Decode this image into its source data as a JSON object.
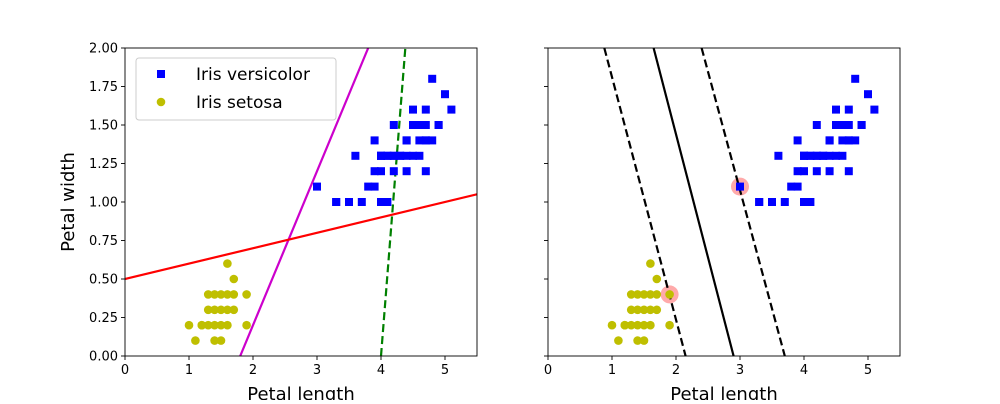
{
  "chart_data": [
    {
      "type": "scatter",
      "xlabel": "Petal length",
      "ylabel": "Petal width",
      "xlim": [
        0,
        5.5
      ],
      "ylim": [
        0,
        2.0
      ],
      "xticks": [
        "0",
        "1",
        "2",
        "3",
        "4",
        "5"
      ],
      "yticks": [
        "0.00",
        "0.25",
        "0.50",
        "0.75",
        "1.00",
        "1.25",
        "1.50",
        "1.75",
        "2.00"
      ],
      "grid": false,
      "legend": {
        "placement": "upper-left",
        "entries": [
          {
            "label": "Iris versicolor",
            "marker": "square",
            "color": "#0000ff"
          },
          {
            "label": "Iris setosa",
            "marker": "circle",
            "color": "#bfbf00"
          }
        ]
      },
      "series": [
        {
          "name": "Iris versicolor",
          "marker": "square",
          "color": "#0000ff",
          "points": [
            [
              4.7,
              1.4
            ],
            [
              4.5,
              1.5
            ],
            [
              4.9,
              1.5
            ],
            [
              4.0,
              1.3
            ],
            [
              4.6,
              1.5
            ],
            [
              4.5,
              1.3
            ],
            [
              4.7,
              1.6
            ],
            [
              3.3,
              1.0
            ],
            [
              4.6,
              1.3
            ],
            [
              3.9,
              1.4
            ],
            [
              3.5,
              1.0
            ],
            [
              4.2,
              1.5
            ],
            [
              4.0,
              1.0
            ],
            [
              4.7,
              1.4
            ],
            [
              3.6,
              1.3
            ],
            [
              4.4,
              1.4
            ],
            [
              4.5,
              1.5
            ],
            [
              4.1,
              1.0
            ],
            [
              4.5,
              1.5
            ],
            [
              3.9,
              1.1
            ],
            [
              4.8,
              1.8
            ],
            [
              4.0,
              1.3
            ],
            [
              4.9,
              1.5
            ],
            [
              4.7,
              1.2
            ],
            [
              4.3,
              1.3
            ],
            [
              4.4,
              1.4
            ],
            [
              4.8,
              1.4
            ],
            [
              5.0,
              1.7
            ],
            [
              4.5,
              1.5
            ],
            [
              3.5,
              1.0
            ],
            [
              3.8,
              1.1
            ],
            [
              3.7,
              1.0
            ],
            [
              3.9,
              1.2
            ],
            [
              5.1,
              1.6
            ],
            [
              4.5,
              1.5
            ],
            [
              4.5,
              1.6
            ],
            [
              4.7,
              1.5
            ],
            [
              4.4,
              1.3
            ],
            [
              4.1,
              1.3
            ],
            [
              4.0,
              1.3
            ],
            [
              4.4,
              1.2
            ],
            [
              4.6,
              1.4
            ],
            [
              4.0,
              1.2
            ],
            [
              3.3,
              1.0
            ],
            [
              4.2,
              1.3
            ],
            [
              4.2,
              1.2
            ],
            [
              4.2,
              1.3
            ],
            [
              4.3,
              1.3
            ],
            [
              3.0,
              1.1
            ],
            [
              4.1,
              1.3
            ]
          ]
        },
        {
          "name": "Iris setosa",
          "marker": "circle",
          "color": "#bfbf00",
          "points": [
            [
              1.4,
              0.2
            ],
            [
              1.3,
              0.2
            ],
            [
              1.5,
              0.2
            ],
            [
              1.7,
              0.4
            ],
            [
              1.4,
              0.3
            ],
            [
              1.5,
              0.1
            ],
            [
              1.6,
              0.2
            ],
            [
              1.1,
              0.1
            ],
            [
              1.2,
              0.2
            ],
            [
              1.3,
              0.4
            ],
            [
              1.7,
              0.3
            ],
            [
              1.9,
              0.2
            ],
            [
              1.6,
              0.4
            ],
            [
              1.0,
              0.2
            ],
            [
              1.6,
              0.6
            ],
            [
              1.9,
              0.4
            ],
            [
              1.7,
              0.5
            ],
            [
              1.5,
              0.4
            ],
            [
              1.4,
              0.1
            ],
            [
              1.6,
              0.3
            ],
            [
              1.5,
              0.3
            ],
            [
              1.3,
              0.3
            ],
            [
              1.4,
              0.4
            ],
            [
              1.2,
              0.2
            ]
          ]
        }
      ],
      "lines": [
        {
          "color": "#cc00cc",
          "style": "solid",
          "points": [
            [
              1.8,
              0.0
            ],
            [
              3.8,
              2.0
            ]
          ]
        },
        {
          "color": "#ff0000",
          "style": "solid",
          "points": [
            [
              0,
              0.5
            ],
            [
              5.5,
              1.05
            ]
          ]
        },
        {
          "color": "#008000",
          "style": "dashed",
          "points": [
            [
              4.0,
              0.0
            ],
            [
              4.38,
              2.0
            ]
          ]
        }
      ]
    },
    {
      "type": "scatter",
      "xlabel": "Petal length",
      "ylabel": "",
      "xlim": [
        0,
        5.5
      ],
      "ylim": [
        0,
        2.0
      ],
      "xticks": [
        "0",
        "1",
        "2",
        "3",
        "4",
        "5"
      ],
      "grid": false,
      "series": [
        {
          "name": "Iris versicolor",
          "marker": "square",
          "color": "#0000ff",
          "points": [
            [
              4.7,
              1.4
            ],
            [
              4.5,
              1.5
            ],
            [
              4.9,
              1.5
            ],
            [
              4.0,
              1.3
            ],
            [
              4.6,
              1.5
            ],
            [
              4.5,
              1.3
            ],
            [
              4.7,
              1.6
            ],
            [
              3.3,
              1.0
            ],
            [
              4.6,
              1.3
            ],
            [
              3.9,
              1.4
            ],
            [
              3.5,
              1.0
            ],
            [
              4.2,
              1.5
            ],
            [
              4.0,
              1.0
            ],
            [
              4.7,
              1.4
            ],
            [
              3.6,
              1.3
            ],
            [
              4.4,
              1.4
            ],
            [
              4.5,
              1.5
            ],
            [
              4.1,
              1.0
            ],
            [
              4.5,
              1.5
            ],
            [
              3.9,
              1.1
            ],
            [
              4.8,
              1.8
            ],
            [
              4.0,
              1.3
            ],
            [
              4.9,
              1.5
            ],
            [
              4.7,
              1.2
            ],
            [
              4.3,
              1.3
            ],
            [
              4.4,
              1.4
            ],
            [
              4.8,
              1.4
            ],
            [
              5.0,
              1.7
            ],
            [
              4.5,
              1.5
            ],
            [
              3.5,
              1.0
            ],
            [
              3.8,
              1.1
            ],
            [
              3.7,
              1.0
            ],
            [
              3.9,
              1.2
            ],
            [
              5.1,
              1.6
            ],
            [
              4.5,
              1.5
            ],
            [
              4.5,
              1.6
            ],
            [
              4.7,
              1.5
            ],
            [
              4.4,
              1.3
            ],
            [
              4.1,
              1.3
            ],
            [
              4.0,
              1.3
            ],
            [
              4.4,
              1.2
            ],
            [
              4.6,
              1.4
            ],
            [
              4.0,
              1.2
            ],
            [
              3.3,
              1.0
            ],
            [
              4.2,
              1.3
            ],
            [
              4.2,
              1.2
            ],
            [
              4.2,
              1.3
            ],
            [
              4.3,
              1.3
            ],
            [
              3.0,
              1.1
            ],
            [
              4.1,
              1.3
            ]
          ]
        },
        {
          "name": "Iris setosa",
          "marker": "circle",
          "color": "#bfbf00",
          "points": [
            [
              1.4,
              0.2
            ],
            [
              1.3,
              0.2
            ],
            [
              1.5,
              0.2
            ],
            [
              1.7,
              0.4
            ],
            [
              1.4,
              0.3
            ],
            [
              1.5,
              0.1
            ],
            [
              1.6,
              0.2
            ],
            [
              1.1,
              0.1
            ],
            [
              1.2,
              0.2
            ],
            [
              1.3,
              0.4
            ],
            [
              1.7,
              0.3
            ],
            [
              1.9,
              0.2
            ],
            [
              1.6,
              0.4
            ],
            [
              1.0,
              0.2
            ],
            [
              1.6,
              0.6
            ],
            [
              1.9,
              0.4
            ],
            [
              1.7,
              0.5
            ],
            [
              1.5,
              0.4
            ],
            [
              1.4,
              0.1
            ],
            [
              1.6,
              0.3
            ],
            [
              1.5,
              0.3
            ],
            [
              1.3,
              0.3
            ],
            [
              1.4,
              0.4
            ],
            [
              1.2,
              0.2
            ]
          ]
        }
      ],
      "support_vectors": {
        "color": "#ffaaaa",
        "points": [
          [
            1.9,
            0.4
          ],
          [
            3.0,
            1.1
          ]
        ]
      },
      "lines": [
        {
          "color": "#000000",
          "style": "solid",
          "points": [
            [
              1.65,
              2.0
            ],
            [
              2.9,
              0.0
            ]
          ]
        },
        {
          "color": "#000000",
          "style": "dashed",
          "points": [
            [
              0.88,
              2.0
            ],
            [
              2.15,
              0.0
            ]
          ]
        },
        {
          "color": "#000000",
          "style": "dashed",
          "points": [
            [
              2.4,
              2.0
            ],
            [
              3.7,
              0.0
            ]
          ]
        }
      ]
    }
  ]
}
